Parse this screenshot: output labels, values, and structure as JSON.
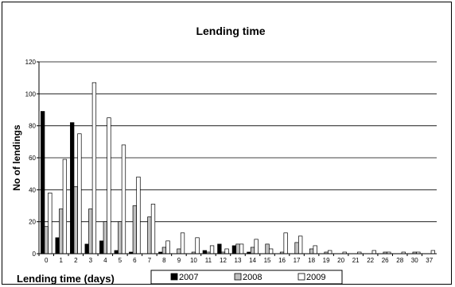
{
  "chart_data": {
    "type": "bar",
    "title": "Lending time",
    "xlabel": "Lending time (days)",
    "ylabel": "No of lendings",
    "ylim": [
      0,
      120
    ],
    "yticks": [
      0,
      20,
      40,
      60,
      80,
      100,
      120
    ],
    "grid": true,
    "legend_position": "bottom",
    "categories": [
      "0",
      "1",
      "2",
      "3",
      "4",
      "5",
      "6",
      "7",
      "8",
      "9",
      "10",
      "11",
      "12",
      "13",
      "14",
      "15",
      "16",
      "17",
      "18",
      "19",
      "20",
      "21",
      "22",
      "26",
      "28",
      "30",
      "37"
    ],
    "series": [
      {
        "name": "2007",
        "color": "#000000",
        "values": [
          89,
          10,
          82,
          6,
          8,
          2,
          1,
          0,
          1,
          0,
          0,
          2,
          6,
          5,
          1,
          0,
          0,
          0,
          0,
          0,
          0,
          0,
          0,
          0,
          0,
          0,
          0
        ]
      },
      {
        "name": "2008",
        "color": "#c0c0c0",
        "values": [
          17,
          28,
          42,
          28,
          20,
          20,
          30,
          23,
          4,
          3,
          1,
          1,
          1,
          6,
          4,
          6,
          1,
          7,
          3,
          1,
          0,
          0,
          0,
          1,
          0,
          1,
          0
        ]
      },
      {
        "name": "2009",
        "color": "#ffffff",
        "values": [
          38,
          59,
          75,
          107,
          85,
          68,
          48,
          31,
          8,
          13,
          10,
          5,
          3,
          6,
          9,
          3,
          13,
          11,
          5,
          2,
          1,
          1,
          2,
          1,
          1,
          1,
          2
        ]
      }
    ]
  }
}
